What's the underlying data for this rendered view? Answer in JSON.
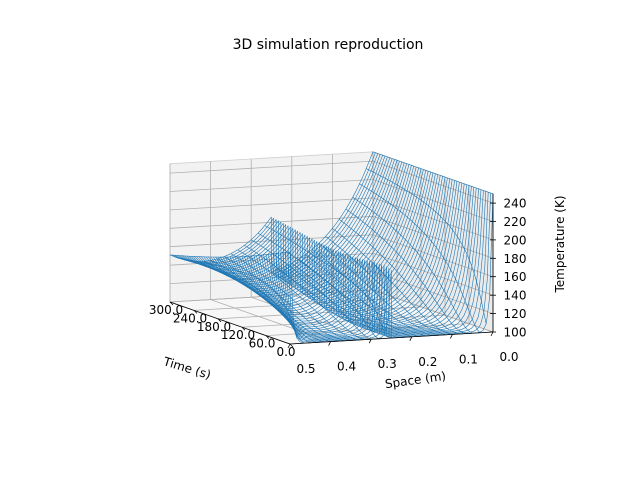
{
  "chart_data": {
    "type": "surface-wireframe-3d",
    "title": "3D simulation reproduction",
    "xlabel": "Time (s)",
    "ylabel": "Space (m)",
    "zlabel": "Temperature (K)",
    "x_ticks": [
      "300.0",
      "240.0",
      "180.0",
      "120.0",
      "60.0",
      "0.0"
    ],
    "y_ticks": [
      "0.5",
      "0.4",
      "0.3",
      "0.2",
      "0.1",
      "0.0"
    ],
    "z_ticks": [
      "100",
      "120",
      "140",
      "160",
      "180",
      "200",
      "220",
      "240"
    ],
    "x_range": [
      0,
      300
    ],
    "y_range": [
      0,
      0.5
    ],
    "z_range": [
      100,
      250
    ],
    "grid": true,
    "surface": {
      "base_temperature": 100,
      "left_boundary": {
        "position": 0.0,
        "time_edge_values": [
          250,
          250
        ]
      },
      "right_boundary": {
        "position": 0.5,
        "time_edge_values": [
          200,
          140
        ]
      },
      "interior_boundary": {
        "position": 0.25,
        "time_edge_values": [
          180,
          160
        ]
      },
      "wire_color": "#1f77b4"
    }
  }
}
